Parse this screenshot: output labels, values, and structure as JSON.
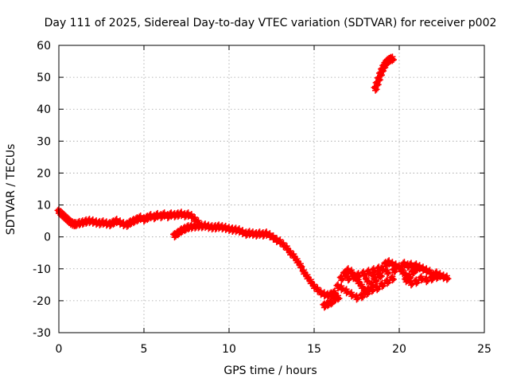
{
  "chart_data": {
    "type": "scatter",
    "title": "Day 111 of 2025, Sidereal Day-to-day VTEC variation (SDTVAR) for receiver p002",
    "xlabel": "GPS time / hours",
    "ylabel": "SDTVAR / TECUs",
    "xlim": [
      0,
      25
    ],
    "ylim": [
      -30,
      60
    ],
    "xticks": [
      0,
      5,
      10,
      15,
      20,
      25
    ],
    "yticks": [
      -30,
      -20,
      -10,
      0,
      10,
      20,
      30,
      40,
      50,
      60
    ],
    "grid": true,
    "marker": "+",
    "series": [
      {
        "name": "SDTVAR",
        "color": "#ff0000",
        "points": [
          [
            0.0,
            8.0
          ],
          [
            0.1,
            7.5
          ],
          [
            0.2,
            7.0
          ],
          [
            0.3,
            6.5
          ],
          [
            0.4,
            6.0
          ],
          [
            0.5,
            5.5
          ],
          [
            0.6,
            5.0
          ],
          [
            0.7,
            4.5
          ],
          [
            0.8,
            4.2
          ],
          [
            0.9,
            4.0
          ],
          [
            1.0,
            4.0
          ],
          [
            1.2,
            4.3
          ],
          [
            1.4,
            4.5
          ],
          [
            1.6,
            4.8
          ],
          [
            1.8,
            5.0
          ],
          [
            2.0,
            4.8
          ],
          [
            2.2,
            4.5
          ],
          [
            2.4,
            4.3
          ],
          [
            2.6,
            4.5
          ],
          [
            2.8,
            4.2
          ],
          [
            3.0,
            4.0
          ],
          [
            3.2,
            4.5
          ],
          [
            3.4,
            5.0
          ],
          [
            3.6,
            4.5
          ],
          [
            3.8,
            4.0
          ],
          [
            4.0,
            3.8
          ],
          [
            4.2,
            4.5
          ],
          [
            4.4,
            5.0
          ],
          [
            4.6,
            5.5
          ],
          [
            4.8,
            6.0
          ],
          [
            5.0,
            5.5
          ],
          [
            5.2,
            6.0
          ],
          [
            5.4,
            6.5
          ],
          [
            5.6,
            6.2
          ],
          [
            5.8,
            6.8
          ],
          [
            6.0,
            6.5
          ],
          [
            6.2,
            7.0
          ],
          [
            6.4,
            6.5
          ],
          [
            6.6,
            7.0
          ],
          [
            6.8,
            6.8
          ],
          [
            7.0,
            7.0
          ],
          [
            7.2,
            7.2
          ],
          [
            7.4,
            6.8
          ],
          [
            7.6,
            7.0
          ],
          [
            7.8,
            6.5
          ],
          [
            8.0,
            5.5
          ],
          [
            8.2,
            4.5
          ],
          [
            6.8,
            0.5
          ],
          [
            7.0,
            1.2
          ],
          [
            7.2,
            2.0
          ],
          [
            7.4,
            2.5
          ],
          [
            7.6,
            3.0
          ],
          [
            7.8,
            3.2
          ],
          [
            8.0,
            3.3
          ],
          [
            8.2,
            3.4
          ],
          [
            8.4,
            3.4
          ],
          [
            8.6,
            3.5
          ],
          [
            8.8,
            3.2
          ],
          [
            9.0,
            3.0
          ],
          [
            9.2,
            3.0
          ],
          [
            9.4,
            3.2
          ],
          [
            9.6,
            3.0
          ],
          [
            9.8,
            2.8
          ],
          [
            10.0,
            2.5
          ],
          [
            10.2,
            2.3
          ],
          [
            10.4,
            2.2
          ],
          [
            10.6,
            2.0
          ],
          [
            10.8,
            1.5
          ],
          [
            11.0,
            1.0
          ],
          [
            11.2,
            1.2
          ],
          [
            11.4,
            1.0
          ],
          [
            11.6,
            0.8
          ],
          [
            11.8,
            1.0
          ],
          [
            12.0,
            0.8
          ],
          [
            12.2,
            1.0
          ],
          [
            12.4,
            0.5
          ],
          [
            12.6,
            -0.2
          ],
          [
            12.8,
            -1.0
          ],
          [
            13.0,
            -1.5
          ],
          [
            13.2,
            -2.5
          ],
          [
            13.4,
            -3.5
          ],
          [
            13.6,
            -5.0
          ],
          [
            13.8,
            -6.0
          ],
          [
            14.0,
            -7.5
          ],
          [
            14.2,
            -9.0
          ],
          [
            14.4,
            -11.0
          ],
          [
            14.6,
            -12.5
          ],
          [
            14.8,
            -14.0
          ],
          [
            15.0,
            -15.5
          ],
          [
            15.2,
            -16.5
          ],
          [
            15.4,
            -17.5
          ],
          [
            15.6,
            -18.0
          ],
          [
            15.8,
            -18.3
          ],
          [
            16.0,
            -18.0
          ],
          [
            16.2,
            -17.5
          ],
          [
            16.4,
            -15.5
          ],
          [
            16.6,
            -13.0
          ],
          [
            16.8,
            -11.5
          ],
          [
            17.0,
            -10.5
          ],
          [
            17.2,
            -11.0
          ],
          [
            17.4,
            -12.5
          ],
          [
            17.6,
            -14.0
          ],
          [
            17.8,
            -15.5
          ],
          [
            18.0,
            -17.0
          ],
          [
            18.2,
            -16.5
          ],
          [
            18.4,
            -15.0
          ],
          [
            18.6,
            -13.5
          ],
          [
            18.8,
            -12.0
          ],
          [
            19.0,
            -10.0
          ],
          [
            19.2,
            -8.5
          ],
          [
            19.4,
            -8.0
          ],
          [
            19.6,
            -8.5
          ],
          [
            19.8,
            -9.0
          ],
          [
            20.0,
            -9.5
          ],
          [
            20.2,
            -11.0
          ],
          [
            20.4,
            -12.0
          ],
          [
            20.6,
            -12.5
          ],
          [
            20.8,
            -11.0
          ],
          [
            21.0,
            -10.0
          ],
          [
            21.2,
            -9.5
          ],
          [
            21.4,
            -10.0
          ],
          [
            21.6,
            -10.5
          ],
          [
            21.8,
            -11.0
          ],
          [
            22.0,
            -12.0
          ],
          [
            22.2,
            -11.5
          ],
          [
            22.4,
            -12.0
          ],
          [
            22.6,
            -12.5
          ],
          [
            22.8,
            -12.8
          ],
          [
            15.6,
            -21.5
          ],
          [
            15.8,
            -21.0
          ],
          [
            16.0,
            -20.5
          ],
          [
            16.2,
            -19.5
          ],
          [
            16.4,
            -19.0
          ],
          [
            16.6,
            -16.0
          ],
          [
            16.9,
            -17.0
          ],
          [
            17.2,
            -18.0
          ],
          [
            17.5,
            -19.0
          ],
          [
            17.8,
            -18.5
          ],
          [
            18.1,
            -17.5
          ],
          [
            18.4,
            -16.5
          ],
          [
            18.7,
            -16.0
          ],
          [
            19.0,
            -15.0
          ],
          [
            19.3,
            -14.0
          ],
          [
            19.6,
            -13.0
          ],
          [
            17.0,
            -13.0
          ],
          [
            17.3,
            -12.5
          ],
          [
            17.6,
            -12.0
          ],
          [
            17.9,
            -11.5
          ],
          [
            18.2,
            -11.0
          ],
          [
            18.5,
            -10.5
          ],
          [
            18.8,
            -10.0
          ],
          [
            18.1,
            -13.5
          ],
          [
            18.5,
            -12.5
          ],
          [
            18.9,
            -12.0
          ],
          [
            19.3,
            -11.0
          ],
          [
            19.7,
            -10.5
          ],
          [
            20.1,
            -10.0
          ],
          [
            20.4,
            -13.5
          ],
          [
            20.7,
            -14.5
          ],
          [
            21.0,
            -14.0
          ],
          [
            21.3,
            -13.0
          ],
          [
            21.6,
            -13.5
          ],
          [
            21.9,
            -13.0
          ],
          [
            22.2,
            -12.5
          ],
          [
            20.3,
            -8.5
          ],
          [
            20.5,
            -9.0
          ],
          [
            20.7,
            -8.8
          ],
          [
            21.0,
            -9.0
          ],
          [
            18.6,
            46.5
          ],
          [
            18.7,
            48.0
          ],
          [
            18.8,
            49.5
          ],
          [
            18.9,
            51.0
          ],
          [
            19.0,
            52.3
          ],
          [
            19.1,
            53.4
          ],
          [
            19.2,
            54.3
          ],
          [
            19.3,
            55.0
          ],
          [
            19.4,
            55.4
          ],
          [
            19.5,
            55.7
          ],
          [
            19.6,
            55.8
          ]
        ]
      }
    ]
  }
}
